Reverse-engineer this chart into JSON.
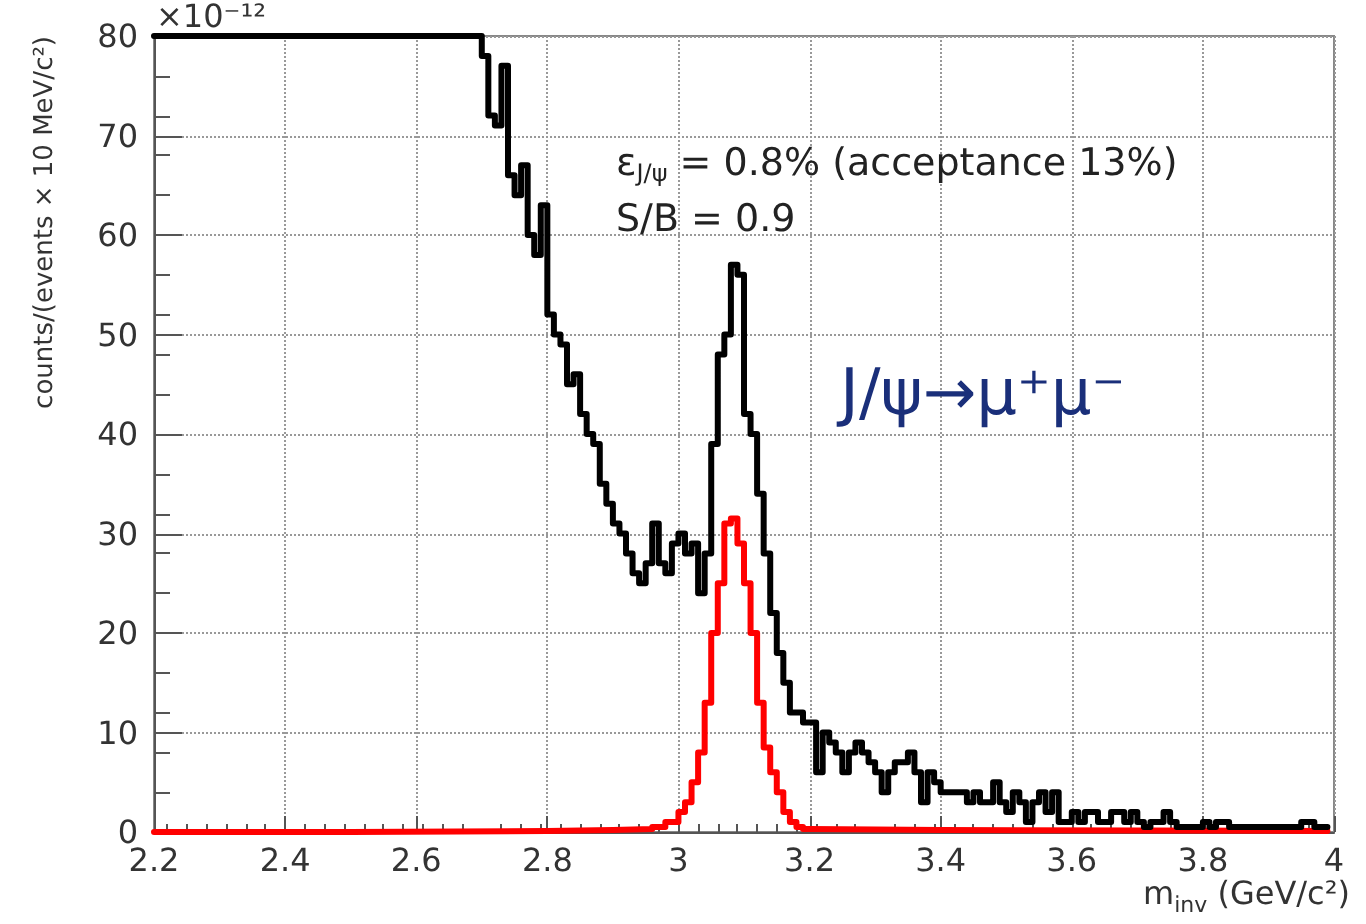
{
  "chart_data": {
    "type": "step",
    "xlabel": "m$_{inv}$ (GeV/c²)",
    "ylabel": "counts/(events × 10 MeV/c²)",
    "annotations": [
      "×10⁻¹²",
      "ε$_{J/ψ}$ = 0.8% (acceptance 13%)",
      "S/B = 0.9",
      "J/ψ→μ⁺μ⁻"
    ],
    "xlim": [
      2.2,
      4
    ],
    "xticks": [
      2.2,
      2.4,
      2.6,
      2.8,
      3,
      3.2,
      3.4,
      3.6,
      3.8,
      4
    ],
    "ylim": [
      0,
      80
    ],
    "yticks": [
      0,
      10,
      20,
      30,
      40,
      50,
      60,
      70,
      80
    ],
    "grid": true,
    "marker": "none",
    "line_style": "solid",
    "series": [
      {
        "color": "#000000",
        "x": [
          2.2,
          2.7,
          2.71,
          2.72,
          2.73,
          2.74,
          2.75,
          2.76,
          2.77,
          2.78,
          2.79,
          2.8,
          2.81,
          2.82,
          2.83,
          2.84,
          2.85,
          2.86,
          2.87,
          2.88,
          2.89,
          2.9,
          2.91,
          2.92,
          2.93,
          2.94,
          2.95,
          2.96,
          2.97,
          2.98,
          2.99,
          3,
          3.01,
          3.02,
          3.03,
          3.04,
          3.05,
          3.06,
          3.07,
          3.08,
          3.09,
          3.1,
          3.11,
          3.12,
          3.13,
          3.14,
          3.15,
          3.16,
          3.17,
          3.18,
          3.19,
          3.2,
          3.21,
          3.22,
          3.23,
          3.24,
          3.25,
          3.26,
          3.27,
          3.28,
          3.29,
          3.3,
          3.31,
          3.32,
          3.33,
          3.34,
          3.35,
          3.36,
          3.37,
          3.38,
          3.39,
          3.4,
          3.41,
          3.42,
          3.43,
          3.44,
          3.45,
          3.46,
          3.47,
          3.48,
          3.49,
          3.5,
          3.51,
          3.52,
          3.53,
          3.54,
          3.55,
          3.56,
          3.57,
          3.58,
          3.59,
          3.6,
          3.61,
          3.62,
          3.63,
          3.64,
          3.65,
          3.66,
          3.67,
          3.68,
          3.69,
          3.7,
          3.71,
          3.72,
          3.73,
          3.74,
          3.75,
          3.76,
          3.77,
          3.78,
          3.79,
          3.8,
          3.81,
          3.82,
          3.83,
          3.84,
          3.85,
          3.86,
          3.87,
          3.88,
          3.89,
          3.9,
          3.91,
          3.92,
          3.93,
          3.94,
          3.95,
          3.96,
          3.97,
          3.98,
          3.99
        ],
        "values": [
          80,
          78,
          72,
          71,
          77,
          66,
          64,
          67,
          60,
          58,
          63,
          52,
          50,
          49,
          45,
          46,
          42,
          40,
          39,
          35,
          33,
          31,
          30,
          28,
          26,
          25,
          27,
          31,
          27,
          26,
          29,
          30,
          28,
          29,
          24,
          28,
          39,
          48,
          50,
          57,
          56,
          42,
          40,
          34,
          28,
          22,
          18,
          15,
          12,
          12,
          11,
          11,
          6,
          10,
          9,
          8,
          6,
          8,
          9,
          8,
          7,
          6,
          4,
          6,
          7,
          7,
          8,
          6,
          3,
          6,
          5,
          4,
          4,
          4,
          4,
          3,
          4,
          3,
          3,
          5,
          3,
          2,
          4,
          3,
          1,
          3,
          4,
          2,
          4,
          1,
          1,
          2,
          1,
          2,
          2,
          1,
          1,
          2,
          2,
          1,
          2,
          1,
          0.5,
          1,
          1,
          2,
          1,
          0.5,
          0.5,
          0.5,
          0.5,
          1,
          0.5,
          1,
          1,
          0.5,
          0.5,
          0.5,
          0.5,
          0.5,
          0.5,
          0.5,
          0.5,
          0.5,
          0.5,
          0.5,
          1,
          1,
          0.5,
          0.5,
          0.5
        ]
      },
      {
        "color": "#ff0000",
        "x": [
          2.2,
          2.5,
          2.8,
          2.9,
          2.96,
          2.97,
          2.98,
          2.99,
          3,
          3.01,
          3.02,
          3.03,
          3.04,
          3.05,
          3.06,
          3.07,
          3.08,
          3.09,
          3.1,
          3.11,
          3.12,
          3.13,
          3.14,
          3.15,
          3.16,
          3.17,
          3.18,
          3.19,
          3.2,
          3.4,
          3.99
        ],
        "values": [
          0,
          0.1,
          0.2,
          0.3,
          0.5,
          0.5,
          1,
          1,
          2,
          3,
          5,
          8,
          13,
          20,
          25,
          31,
          31.5,
          29,
          25,
          20,
          13,
          8.5,
          6,
          4,
          2,
          1,
          0.5,
          0.3,
          0.2,
          0.1,
          0.1
        ]
      }
    ]
  }
}
